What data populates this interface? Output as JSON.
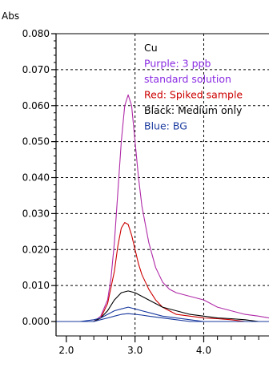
{
  "chart_data": {
    "type": "line",
    "ylabel": "Abs",
    "xlabel": "",
    "title": "",
    "xlim": [
      1.85,
      4.95
    ],
    "ylim": [
      -0.004,
      0.08
    ],
    "xticks": [
      "2.0",
      "3.0",
      "4.0"
    ],
    "xtick_values": [
      2.0,
      3.0,
      4.0
    ],
    "yticks": [
      "0.000",
      "0.010",
      "0.020",
      "0.030",
      "0.040",
      "0.050",
      "0.060",
      "0.070",
      "0.080"
    ],
    "ytick_values": [
      0.0,
      0.01,
      0.02,
      0.03,
      0.04,
      0.05,
      0.06,
      0.07,
      0.08
    ],
    "grid": true,
    "legend": {
      "placement": "top-right",
      "entries": [
        {
          "text": "Cu",
          "color": "#000000"
        },
        {
          "text": "Purple: 3 ppb",
          "color": "#8a2be2"
        },
        {
          "text": "standard solution",
          "color": "#8a2be2"
        },
        {
          "text": "Red: Spiked sample",
          "color": "#cc0000"
        },
        {
          "text": "Black: Medium only",
          "color": "#000000"
        },
        {
          "text": "Blue: BG",
          "color": "#1a3a9e"
        }
      ]
    },
    "series": [
      {
        "color": "#b02aa8",
        "x": [
          1.85,
          2.0,
          2.2,
          2.4,
          2.5,
          2.6,
          2.65,
          2.7,
          2.75,
          2.8,
          2.85,
          2.9,
          2.95,
          3.0,
          3.05,
          3.1,
          3.2,
          3.3,
          3.4,
          3.5,
          3.6,
          3.8,
          4.0,
          4.2,
          4.4,
          4.6,
          4.8,
          4.95
        ],
        "y": [
          0.0,
          0.0,
          0.0,
          0.0,
          0.0015,
          0.006,
          0.012,
          0.022,
          0.036,
          0.05,
          0.06,
          0.063,
          0.06,
          0.05,
          0.04,
          0.032,
          0.022,
          0.015,
          0.011,
          0.009,
          0.008,
          0.007,
          0.006,
          0.004,
          0.003,
          0.002,
          0.0015,
          0.001
        ]
      },
      {
        "color": "#cc0000",
        "x": [
          1.85,
          2.0,
          2.2,
          2.4,
          2.5,
          2.6,
          2.7,
          2.75,
          2.8,
          2.85,
          2.9,
          2.95,
          3.0,
          3.05,
          3.1,
          3.2,
          3.3,
          3.4,
          3.5,
          3.6,
          3.8,
          4.0,
          4.2,
          4.4,
          4.6,
          4.8,
          4.95
        ],
        "y": [
          0.0,
          0.0,
          0.0,
          0.0,
          0.001,
          0.005,
          0.014,
          0.021,
          0.026,
          0.0275,
          0.027,
          0.024,
          0.02,
          0.016,
          0.013,
          0.009,
          0.006,
          0.004,
          0.003,
          0.002,
          0.0015,
          0.001,
          0.0008,
          0.0005,
          0.0,
          0.0,
          0.0
        ]
      },
      {
        "color": "#000000",
        "x": [
          1.85,
          2.0,
          2.2,
          2.4,
          2.5,
          2.6,
          2.7,
          2.8,
          2.9,
          3.0,
          3.1,
          3.2,
          3.3,
          3.4,
          3.6,
          3.8,
          4.0,
          4.2,
          4.4,
          4.6,
          4.8,
          4.95
        ],
        "y": [
          0.0,
          0.0,
          0.0,
          0.0,
          0.001,
          0.003,
          0.006,
          0.008,
          0.0085,
          0.008,
          0.007,
          0.006,
          0.005,
          0.004,
          0.003,
          0.002,
          0.0015,
          0.001,
          0.0008,
          0.0005,
          0.0,
          0.0
        ]
      },
      {
        "color": "#1a3a9e",
        "x": [
          1.85,
          2.0,
          2.2,
          2.4,
          2.5,
          2.6,
          2.7,
          2.8,
          2.9,
          3.0,
          3.1,
          3.2,
          3.4,
          3.6,
          3.8,
          4.0,
          4.2,
          4.4,
          4.6,
          4.8,
          4.95
        ],
        "y": [
          0.0,
          0.0,
          0.0,
          0.0005,
          0.001,
          0.002,
          0.003,
          0.0035,
          0.004,
          0.0035,
          0.003,
          0.0025,
          0.0015,
          0.001,
          0.0005,
          0.0,
          0.0,
          0.0,
          0.0,
          0.0,
          0.0
        ]
      },
      {
        "color": "#1a3a9e",
        "x": [
          1.85,
          2.0,
          2.2,
          2.4,
          2.6,
          2.7,
          2.8,
          2.9,
          3.0,
          3.1,
          3.2,
          3.4,
          3.6,
          3.8,
          4.0,
          4.2,
          4.4,
          4.6,
          4.8,
          4.95
        ],
        "y": [
          0.0,
          0.0,
          0.0,
          0.0,
          0.001,
          0.0015,
          0.002,
          0.0022,
          0.002,
          0.0018,
          0.0015,
          0.001,
          0.0005,
          0.0,
          0.0,
          0.0,
          0.0,
          0.0,
          0.0,
          0.0
        ]
      }
    ]
  }
}
